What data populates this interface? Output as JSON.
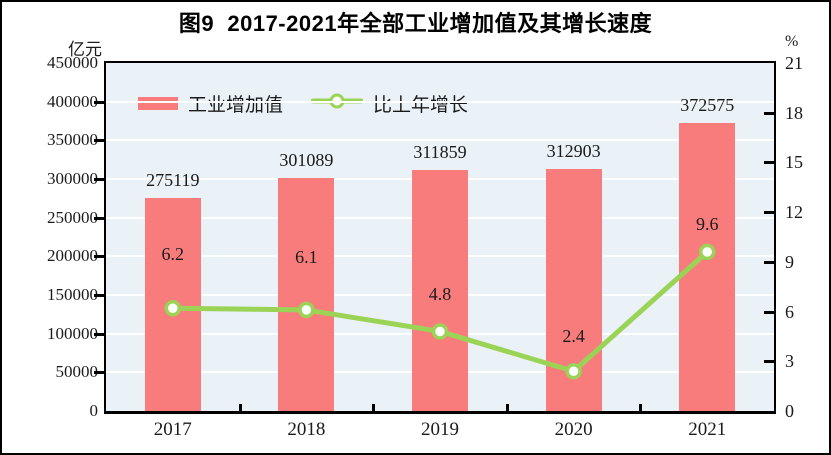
{
  "chart_data": {
    "type": "bar+line",
    "title": "图9  2017-2021年全部工业增加值及其增长速度",
    "categories": [
      "2017",
      "2018",
      "2019",
      "2020",
      "2021"
    ],
    "series": [
      {
        "name": "工业增加值",
        "type": "bar",
        "axis": "left",
        "unit": "亿元",
        "values": [
          275119,
          301089,
          311859,
          312903,
          372575
        ],
        "labels": [
          "275119",
          "301089",
          "311859",
          "312903",
          "372575"
        ],
        "color": "#f97c7c"
      },
      {
        "name": "比上年增长",
        "type": "line",
        "axis": "right",
        "unit": "%",
        "values": [
          6.2,
          6.1,
          4.8,
          2.4,
          9.6
        ],
        "labels": [
          "6.2",
          "6.1",
          "4.8",
          "2.4",
          "9.6"
        ],
        "color": "#9bd356",
        "marker": "circle-white-fill"
      }
    ],
    "left_axis": {
      "unit": "亿元",
      "min": 0,
      "max": 450000,
      "step": 50000,
      "tick_labels": [
        "450000",
        "400000",
        "350000",
        "300000",
        "250000",
        "200000",
        "150000",
        "100000",
        "50000",
        "0"
      ]
    },
    "right_axis": {
      "unit": "%",
      "min": 0,
      "max": 21,
      "step": 3,
      "tick_labels": [
        "21",
        "18",
        "15",
        "12",
        "9",
        "6",
        "3",
        "0"
      ]
    },
    "grid": {
      "horizontal": true,
      "color": "#ffffff"
    },
    "plot_background": "#eaf2f7",
    "legend_position": "top-left-inside"
  }
}
